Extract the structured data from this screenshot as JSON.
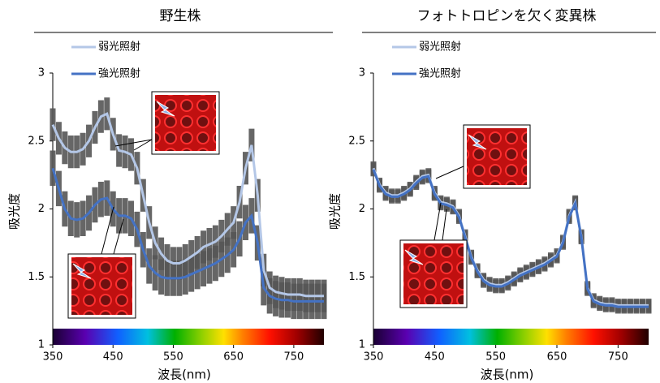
{
  "chart_data": [
    {
      "type": "line",
      "title": "野生株",
      "x_label": "波長(nm)",
      "y_label": "吸光度",
      "x": [
        350,
        360,
        370,
        380,
        390,
        400,
        410,
        420,
        430,
        440,
        450,
        460,
        470,
        480,
        490,
        500,
        510,
        520,
        530,
        540,
        550,
        560,
        570,
        580,
        590,
        600,
        610,
        620,
        630,
        640,
        650,
        660,
        670,
        680,
        690,
        700,
        710,
        720,
        730,
        740,
        750,
        760,
        770,
        780,
        790,
        800
      ],
      "xlim": [
        350,
        800
      ],
      "xticks": [
        350,
        450,
        550,
        650,
        750
      ],
      "ylim": [
        1,
        3
      ],
      "yticks": [
        1,
        1.5,
        2,
        2.5,
        3
      ],
      "series": [
        {
          "name": "弱光照射",
          "color": "#b4c7e7",
          "error": 0.12,
          "values": [
            2.62,
            2.52,
            2.45,
            2.42,
            2.42,
            2.44,
            2.5,
            2.6,
            2.68,
            2.7,
            2.55,
            2.43,
            2.42,
            2.4,
            2.3,
            2.1,
            1.9,
            1.75,
            1.67,
            1.62,
            1.6,
            1.6,
            1.62,
            1.65,
            1.68,
            1.72,
            1.74,
            1.76,
            1.8,
            1.85,
            1.9,
            2.05,
            2.3,
            2.47,
            2.1,
            1.55,
            1.42,
            1.39,
            1.38,
            1.37,
            1.37,
            1.37,
            1.36,
            1.36,
            1.36,
            1.36
          ]
        },
        {
          "name": "強光照射",
          "color": "#4472c4",
          "error": 0.13,
          "values": [
            2.3,
            2.15,
            2.0,
            1.93,
            1.92,
            1.93,
            1.97,
            2.03,
            2.07,
            2.08,
            2.0,
            1.95,
            1.95,
            1.93,
            1.85,
            1.7,
            1.58,
            1.53,
            1.5,
            1.49,
            1.49,
            1.49,
            1.5,
            1.52,
            1.54,
            1.56,
            1.58,
            1.6,
            1.63,
            1.66,
            1.7,
            1.78,
            1.9,
            1.95,
            1.75,
            1.42,
            1.36,
            1.34,
            1.33,
            1.33,
            1.32,
            1.32,
            1.32,
            1.32,
            1.32,
            1.32
          ]
        }
      ]
    },
    {
      "type": "line",
      "title": "フォトトロピンを欠く変異株",
      "x_label": "波長(nm)",
      "y_label": "吸光度",
      "x": [
        350,
        360,
        370,
        380,
        390,
        400,
        410,
        420,
        430,
        440,
        450,
        460,
        470,
        480,
        490,
        500,
        510,
        520,
        530,
        540,
        550,
        560,
        570,
        580,
        590,
        600,
        610,
        620,
        630,
        640,
        650,
        660,
        670,
        680,
        690,
        700,
        710,
        720,
        730,
        740,
        750,
        760,
        770,
        780,
        790,
        800
      ],
      "xlim": [
        350,
        800
      ],
      "xticks": [
        350,
        450,
        550,
        650,
        750
      ],
      "ylim": [
        1,
        3
      ],
      "yticks": [
        1,
        1.5,
        2,
        2.5,
        3
      ],
      "series": [
        {
          "name": "弱光照射",
          "color": "#b4c7e7",
          "error": 0.05,
          "values": [
            2.3,
            2.18,
            2.12,
            2.1,
            2.1,
            2.12,
            2.15,
            2.2,
            2.24,
            2.25,
            2.12,
            2.05,
            2.04,
            2.02,
            1.95,
            1.8,
            1.65,
            1.55,
            1.48,
            1.45,
            1.44,
            1.44,
            1.46,
            1.49,
            1.52,
            1.54,
            1.56,
            1.58,
            1.6,
            1.63,
            1.66,
            1.76,
            1.95,
            2.05,
            1.8,
            1.42,
            1.33,
            1.31,
            1.3,
            1.3,
            1.29,
            1.29,
            1.29,
            1.29,
            1.29,
            1.29
          ]
        },
        {
          "name": "強光照射",
          "color": "#4472c4",
          "error": 0.05,
          "values": [
            2.29,
            2.17,
            2.11,
            2.09,
            2.09,
            2.11,
            2.14,
            2.19,
            2.23,
            2.24,
            2.11,
            2.04,
            2.03,
            2.01,
            1.94,
            1.79,
            1.64,
            1.54,
            1.47,
            1.44,
            1.43,
            1.43,
            1.45,
            1.48,
            1.51,
            1.53,
            1.55,
            1.57,
            1.59,
            1.62,
            1.65,
            1.75,
            1.94,
            2.04,
            1.79,
            1.41,
            1.32,
            1.3,
            1.29,
            1.29,
            1.28,
            1.28,
            1.28,
            1.28,
            1.28,
            1.28
          ]
        }
      ]
    }
  ]
}
